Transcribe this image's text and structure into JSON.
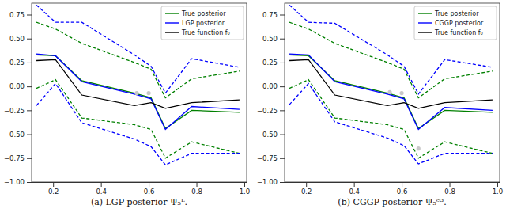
{
  "chart_data": [
    {
      "type": "line",
      "title": "(a) LGP posterior Ψ₅ᴸ.",
      "x": [
        0.13,
        0.21,
        0.32,
        0.54,
        0.61,
        0.67,
        0.78,
        0.98
      ],
      "xlim": [
        0.11,
        1.01
      ],
      "xticks": [
        0.2,
        0.4,
        0.6,
        0.8,
        {
          "value": 1.0,
          "label": "1.0"
        }
      ],
      "ylim": [
        -1.0,
        0.87
      ],
      "yticks": [
        {
          "value": -1.0,
          "label": "−1.00"
        },
        {
          "value": -0.75,
          "label": "−0.75"
        },
        {
          "value": -0.5,
          "label": "−0.50"
        },
        {
          "value": -0.25,
          "label": "−0.25"
        },
        {
          "value": 0.0,
          "label": "0.00"
        },
        {
          "value": 0.25,
          "label": "0.25"
        },
        {
          "value": 0.5,
          "label": "0.50"
        },
        {
          "value": 0.75,
          "label": "0.75"
        }
      ],
      "legend": "upper right",
      "series": [
        {
          "name": "True posterior",
          "color": "#008000",
          "values": [
            0.33,
            0.32,
            0.06,
            -0.07,
            -0.12,
            -0.44,
            -0.25,
            -0.27
          ],
          "lower": [
            -0.02,
            0.07,
            -0.33,
            -0.4,
            -0.45,
            -0.75,
            -0.58,
            -0.7
          ],
          "upper": [
            0.67,
            0.6,
            0.45,
            0.25,
            0.18,
            -0.12,
            0.08,
            0.16
          ]
        },
        {
          "name": "LGP posterior",
          "color": "#0000ff",
          "values": [
            0.34,
            0.32,
            0.05,
            -0.08,
            -0.13,
            -0.45,
            -0.21,
            -0.24
          ],
          "lower": [
            -0.2,
            0.03,
            -0.38,
            -0.55,
            -0.63,
            -0.82,
            -0.7,
            -0.7
          ],
          "upper": [
            0.85,
            0.67,
            0.67,
            0.33,
            0.21,
            -0.07,
            0.29,
            0.2
          ]
        },
        {
          "name": "True function f₀",
          "color": "#000000",
          "values": [
            0.27,
            0.28,
            -0.09,
            -0.2,
            -0.17,
            -0.23,
            -0.17,
            -0.14
          ]
        }
      ],
      "points": {
        "x": [
          0.55,
          0.6
        ],
        "y": [
          -0.07,
          -0.07
        ],
        "color": "#c8c8c8"
      }
    },
    {
      "type": "line",
      "title": "(b) CGGP posterior Ψ₅ᶜᴳ.",
      "x": [
        0.13,
        0.21,
        0.32,
        0.54,
        0.61,
        0.67,
        0.78,
        0.98
      ],
      "xlim": [
        0.11,
        1.01
      ],
      "xticks": [
        0.2,
        0.4,
        0.6,
        0.8,
        {
          "value": 1.0,
          "label": "1.0"
        }
      ],
      "ylim": [
        -1.0,
        0.87
      ],
      "yticks": [
        {
          "value": -1.0,
          "label": "−1.00"
        },
        {
          "value": -0.75,
          "label": "−0.75"
        },
        {
          "value": -0.5,
          "label": "−0.50"
        },
        {
          "value": -0.25,
          "label": "−0.25"
        },
        {
          "value": 0.0,
          "label": "0.00"
        },
        {
          "value": 0.25,
          "label": "0.25"
        },
        {
          "value": 0.5,
          "label": "0.50"
        },
        {
          "value": 0.75,
          "label": "0.75"
        }
      ],
      "legend": "upper right",
      "series": [
        {
          "name": "True posterior",
          "color": "#008000",
          "values": [
            0.33,
            0.32,
            0.06,
            -0.07,
            -0.12,
            -0.44,
            -0.25,
            -0.27
          ],
          "lower": [
            -0.02,
            0.07,
            -0.33,
            -0.4,
            -0.45,
            -0.75,
            -0.58,
            -0.7
          ],
          "upper": [
            0.67,
            0.6,
            0.45,
            0.25,
            0.18,
            -0.12,
            0.08,
            0.16
          ]
        },
        {
          "name": "CGGP posterior",
          "color": "#0000ff",
          "values": [
            0.34,
            0.33,
            0.05,
            -0.08,
            -0.13,
            -0.45,
            -0.22,
            -0.25
          ],
          "lower": [
            -0.19,
            0.03,
            -0.37,
            -0.54,
            -0.62,
            -0.81,
            -0.7,
            -0.7
          ],
          "upper": [
            0.85,
            0.67,
            0.66,
            0.33,
            0.21,
            -0.08,
            0.28,
            0.2
          ]
        },
        {
          "name": "True function f₀",
          "color": "#000000",
          "values": [
            0.27,
            0.28,
            -0.09,
            -0.2,
            -0.17,
            -0.23,
            -0.17,
            -0.14
          ]
        }
      ],
      "points": {
        "x": [
          0.55,
          0.6,
          0.67
        ],
        "y": [
          -0.06,
          -0.07,
          -0.65
        ],
        "color": "#c8c8c8"
      }
    }
  ]
}
